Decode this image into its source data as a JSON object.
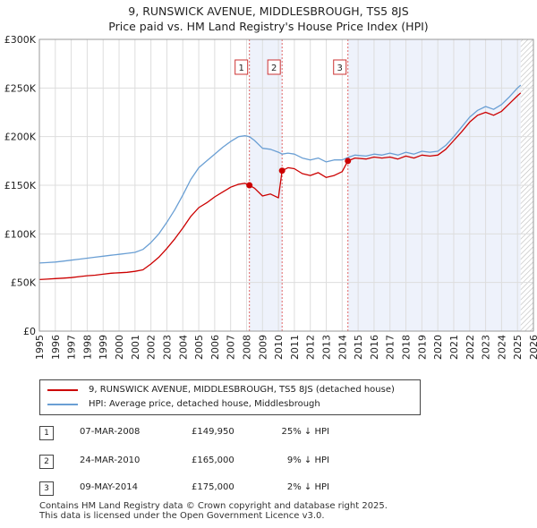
{
  "title": [
    "9, RUNSWICK AVENUE, MIDDLESBROUGH, TS5 8JS",
    "Price paid vs. HM Land Registry's House Price Index (HPI)"
  ],
  "chart_data": {
    "type": "line",
    "title": "9, RUNSWICK AVENUE, MIDDLESBROUGH, TS5 8JS — Price paid vs. HM Land Registry's House Price Index (HPI)",
    "xlim": [
      1995,
      2026
    ],
    "ylim": [
      0,
      300000
    ],
    "x_ticks": [
      "1995",
      "1996",
      "1997",
      "1998",
      "1999",
      "2000",
      "2001",
      "2002",
      "2003",
      "2004",
      "2005",
      "2006",
      "2007",
      "2008",
      "2009",
      "2010",
      "2011",
      "2012",
      "2013",
      "2014",
      "2015",
      "2016",
      "2017",
      "2018",
      "2019",
      "2020",
      "2021",
      "2022",
      "2023",
      "2024",
      "2025",
      "2026"
    ],
    "y_ticks": [
      {
        "value": 0,
        "label": "£0"
      },
      {
        "value": 50000,
        "label": "£50K"
      },
      {
        "value": 100000,
        "label": "£100K"
      },
      {
        "value": 150000,
        "label": "£150K"
      },
      {
        "value": 200000,
        "label": "£200K"
      },
      {
        "value": 250000,
        "label": "£250K"
      },
      {
        "value": 300000,
        "label": "£300K"
      }
    ],
    "grid": true,
    "shaded_periods": [
      [
        2008.18,
        2010.23
      ],
      [
        2014.36,
        2025.2
      ]
    ],
    "future_hatch_from": 2025.2,
    "series": [
      {
        "name": "9, RUNSWICK AVENUE, MIDDLESBROUGH, TS5 8JS (detached house)",
        "color": "#cc0000",
        "points": [
          [
            1995.0,
            53000
          ],
          [
            1995.5,
            53500
          ],
          [
            1996.0,
            54000
          ],
          [
            1996.5,
            54500
          ],
          [
            1997.0,
            55000
          ],
          [
            1997.5,
            56000
          ],
          [
            1998.0,
            57000
          ],
          [
            1998.5,
            57500
          ],
          [
            1999.0,
            58500
          ],
          [
            1999.5,
            59500
          ],
          [
            2000.0,
            60000
          ],
          [
            2000.5,
            60500
          ],
          [
            2001.0,
            61500
          ],
          [
            2001.5,
            63000
          ],
          [
            2002.0,
            69000
          ],
          [
            2002.5,
            76000
          ],
          [
            2003.0,
            85000
          ],
          [
            2003.5,
            95000
          ],
          [
            2004.0,
            106000
          ],
          [
            2004.5,
            118000
          ],
          [
            2005.0,
            127000
          ],
          [
            2005.5,
            132000
          ],
          [
            2006.0,
            138000
          ],
          [
            2006.5,
            143000
          ],
          [
            2007.0,
            148000
          ],
          [
            2007.5,
            151000
          ],
          [
            2007.9,
            152000
          ],
          [
            2008.18,
            149950
          ],
          [
            2008.5,
            147000
          ],
          [
            2009.0,
            139000
          ],
          [
            2009.5,
            141000
          ],
          [
            2010.0,
            137000
          ],
          [
            2010.23,
            165000
          ],
          [
            2010.6,
            168000
          ],
          [
            2011.0,
            167000
          ],
          [
            2011.5,
            162000
          ],
          [
            2012.0,
            160000
          ],
          [
            2012.5,
            163000
          ],
          [
            2013.0,
            158000
          ],
          [
            2013.5,
            160000
          ],
          [
            2014.0,
            164000
          ],
          [
            2014.36,
            175000
          ],
          [
            2014.8,
            178000
          ],
          [
            2015.5,
            177000
          ],
          [
            2016.0,
            179000
          ],
          [
            2016.5,
            178000
          ],
          [
            2017.0,
            179000
          ],
          [
            2017.5,
            177000
          ],
          [
            2018.0,
            180000
          ],
          [
            2018.5,
            178000
          ],
          [
            2019.0,
            181000
          ],
          [
            2019.5,
            180000
          ],
          [
            2020.0,
            181000
          ],
          [
            2020.5,
            187000
          ],
          [
            2021.0,
            196000
          ],
          [
            2021.5,
            205000
          ],
          [
            2022.0,
            215000
          ],
          [
            2022.5,
            222000
          ],
          [
            2023.0,
            225000
          ],
          [
            2023.5,
            222000
          ],
          [
            2024.0,
            226000
          ],
          [
            2024.5,
            234000
          ],
          [
            2025.0,
            242000
          ],
          [
            2025.2,
            245000
          ]
        ]
      },
      {
        "name": "HPI: Average price, detached house, Middlesbrough",
        "color": "#6a9fd4",
        "points": [
          [
            1995.0,
            70000
          ],
          [
            1995.5,
            70500
          ],
          [
            1996.0,
            71000
          ],
          [
            1996.5,
            72000
          ],
          [
            1997.0,
            73000
          ],
          [
            1997.5,
            74000
          ],
          [
            1998.0,
            75000
          ],
          [
            1998.5,
            76000
          ],
          [
            1999.0,
            77000
          ],
          [
            1999.5,
            78000
          ],
          [
            2000.0,
            79000
          ],
          [
            2000.5,
            80000
          ],
          [
            2001.0,
            81000
          ],
          [
            2001.5,
            84000
          ],
          [
            2002.0,
            91000
          ],
          [
            2002.5,
            100000
          ],
          [
            2003.0,
            112000
          ],
          [
            2003.5,
            125000
          ],
          [
            2004.0,
            140000
          ],
          [
            2004.5,
            156000
          ],
          [
            2005.0,
            168000
          ],
          [
            2005.5,
            175000
          ],
          [
            2006.0,
            182000
          ],
          [
            2006.5,
            189000
          ],
          [
            2007.0,
            195000
          ],
          [
            2007.5,
            200000
          ],
          [
            2007.9,
            201000
          ],
          [
            2008.18,
            200000
          ],
          [
            2008.5,
            196000
          ],
          [
            2009.0,
            188000
          ],
          [
            2009.5,
            187000
          ],
          [
            2010.0,
            184000
          ],
          [
            2010.23,
            182000
          ],
          [
            2010.6,
            183000
          ],
          [
            2011.0,
            182000
          ],
          [
            2011.5,
            178000
          ],
          [
            2012.0,
            176000
          ],
          [
            2012.5,
            178000
          ],
          [
            2013.0,
            174000
          ],
          [
            2013.5,
            176000
          ],
          [
            2014.0,
            176000
          ],
          [
            2014.36,
            178500
          ],
          [
            2014.8,
            181000
          ],
          [
            2015.5,
            180000
          ],
          [
            2016.0,
            182000
          ],
          [
            2016.5,
            181000
          ],
          [
            2017.0,
            183000
          ],
          [
            2017.5,
            181000
          ],
          [
            2018.0,
            184000
          ],
          [
            2018.5,
            182000
          ],
          [
            2019.0,
            185000
          ],
          [
            2019.5,
            184000
          ],
          [
            2020.0,
            185000
          ],
          [
            2020.5,
            191000
          ],
          [
            2021.0,
            200000
          ],
          [
            2021.5,
            210000
          ],
          [
            2022.0,
            220000
          ],
          [
            2022.5,
            227000
          ],
          [
            2023.0,
            231000
          ],
          [
            2023.5,
            228000
          ],
          [
            2024.0,
            233000
          ],
          [
            2024.5,
            241000
          ],
          [
            2025.0,
            250000
          ],
          [
            2025.2,
            253000
          ]
        ]
      }
    ],
    "sale_markers": [
      {
        "label": "1",
        "x": 2008.18,
        "value": 149950
      },
      {
        "label": "2",
        "x": 2010.23,
        "value": 165000
      },
      {
        "label": "3",
        "x": 2014.36,
        "value": 175000
      }
    ]
  },
  "legend": [
    {
      "label": "9, RUNSWICK AVENUE, MIDDLESBROUGH, TS5 8JS (detached house)",
      "color": "#cc0000"
    },
    {
      "label": "HPI: Average price, detached house, Middlesbrough",
      "color": "#6a9fd4"
    }
  ],
  "sales": [
    {
      "num": "1",
      "date": "07-MAR-2008",
      "price": "£149,950",
      "hpi": "25% ↓ HPI"
    },
    {
      "num": "2",
      "date": "24-MAR-2010",
      "price": "£165,000",
      "hpi": "9% ↓ HPI"
    },
    {
      "num": "3",
      "date": "09-MAY-2014",
      "price": "£175,000",
      "hpi": "2% ↓ HPI"
    }
  ],
  "footer": [
    "Contains HM Land Registry data © Crown copyright and database right 2025.",
    "This data is licensed under the Open Government Licence v3.0."
  ]
}
